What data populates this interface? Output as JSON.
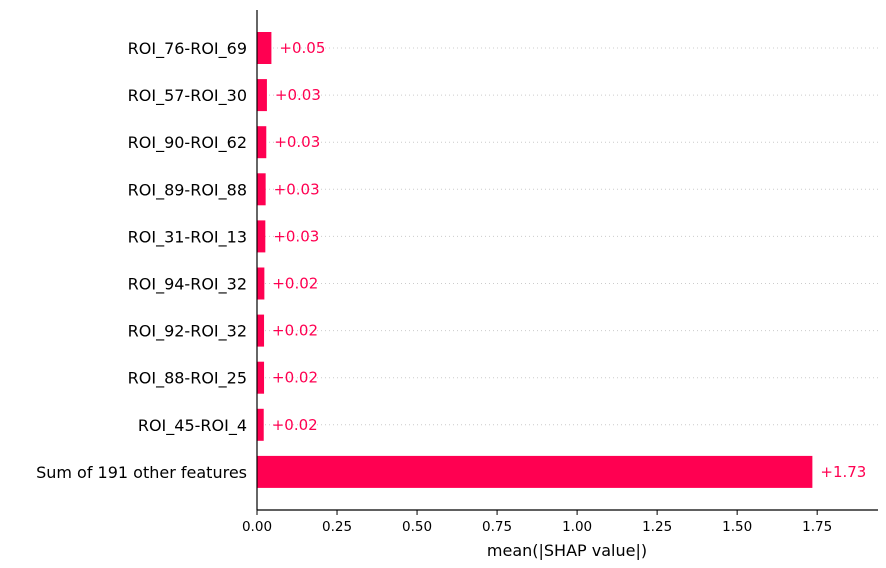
{
  "chart_data": {
    "type": "bar",
    "orientation": "horizontal",
    "categories": [
      "ROI_76-ROI_69",
      "ROI_57-ROI_30",
      "ROI_90-ROI_62",
      "ROI_89-ROI_88",
      "ROI_31-ROI_13",
      "ROI_94-ROI_32",
      "ROI_92-ROI_32",
      "ROI_88-ROI_25",
      "ROI_45-ROI_4",
      "Sum of 191 other features"
    ],
    "values": [
      0.045,
      0.031,
      0.029,
      0.027,
      0.026,
      0.023,
      0.022,
      0.022,
      0.021,
      1.735
    ],
    "value_labels": [
      "+0.05",
      "+0.03",
      "+0.03",
      "+0.03",
      "+0.03",
      "+0.02",
      "+0.02",
      "+0.02",
      "+0.02",
      "+1.73"
    ],
    "xlabel": "mean(|SHAP value|)",
    "ylabel": "",
    "title": "",
    "xlim": [
      0,
      1.94
    ],
    "xticks": [
      0.0,
      0.25,
      0.5,
      0.75,
      1.0,
      1.25,
      1.5,
      1.75
    ],
    "xtick_labels": [
      "0.00",
      "0.25",
      "0.50",
      "0.75",
      "1.00",
      "1.25",
      "1.50",
      "1.75"
    ],
    "grid": "horizontal dotted lines per row",
    "legend": "none",
    "colors": {
      "bar": "#ff0051",
      "value_label": "#ff0051",
      "axis": "#000000",
      "gridline": "#cccccc"
    }
  }
}
